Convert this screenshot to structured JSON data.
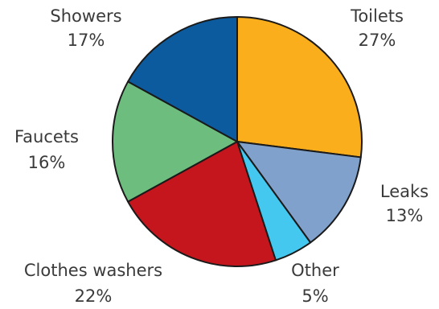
{
  "chart_data": {
    "type": "pie",
    "title": "",
    "slices": [
      {
        "label": "Toilets",
        "value": 27,
        "value_label": "27%",
        "color": "#FBAE1B"
      },
      {
        "label": "Leaks",
        "value": 13,
        "value_label": "13%",
        "color": "#7FA1CC"
      },
      {
        "label": "Other",
        "value": 5,
        "value_label": "5%",
        "color": "#45C8F0"
      },
      {
        "label": "Clothes washers",
        "value": 22,
        "value_label": "22%",
        "color": "#C4161C"
      },
      {
        "label": "Faucets",
        "value": 16,
        "value_label": "16%",
        "color": "#6DBD7E"
      },
      {
        "label": "Showers",
        "value": 17,
        "value_label": "17%",
        "color": "#0C5B9E"
      }
    ],
    "start_angle": "top",
    "direction": "clockwise"
  }
}
